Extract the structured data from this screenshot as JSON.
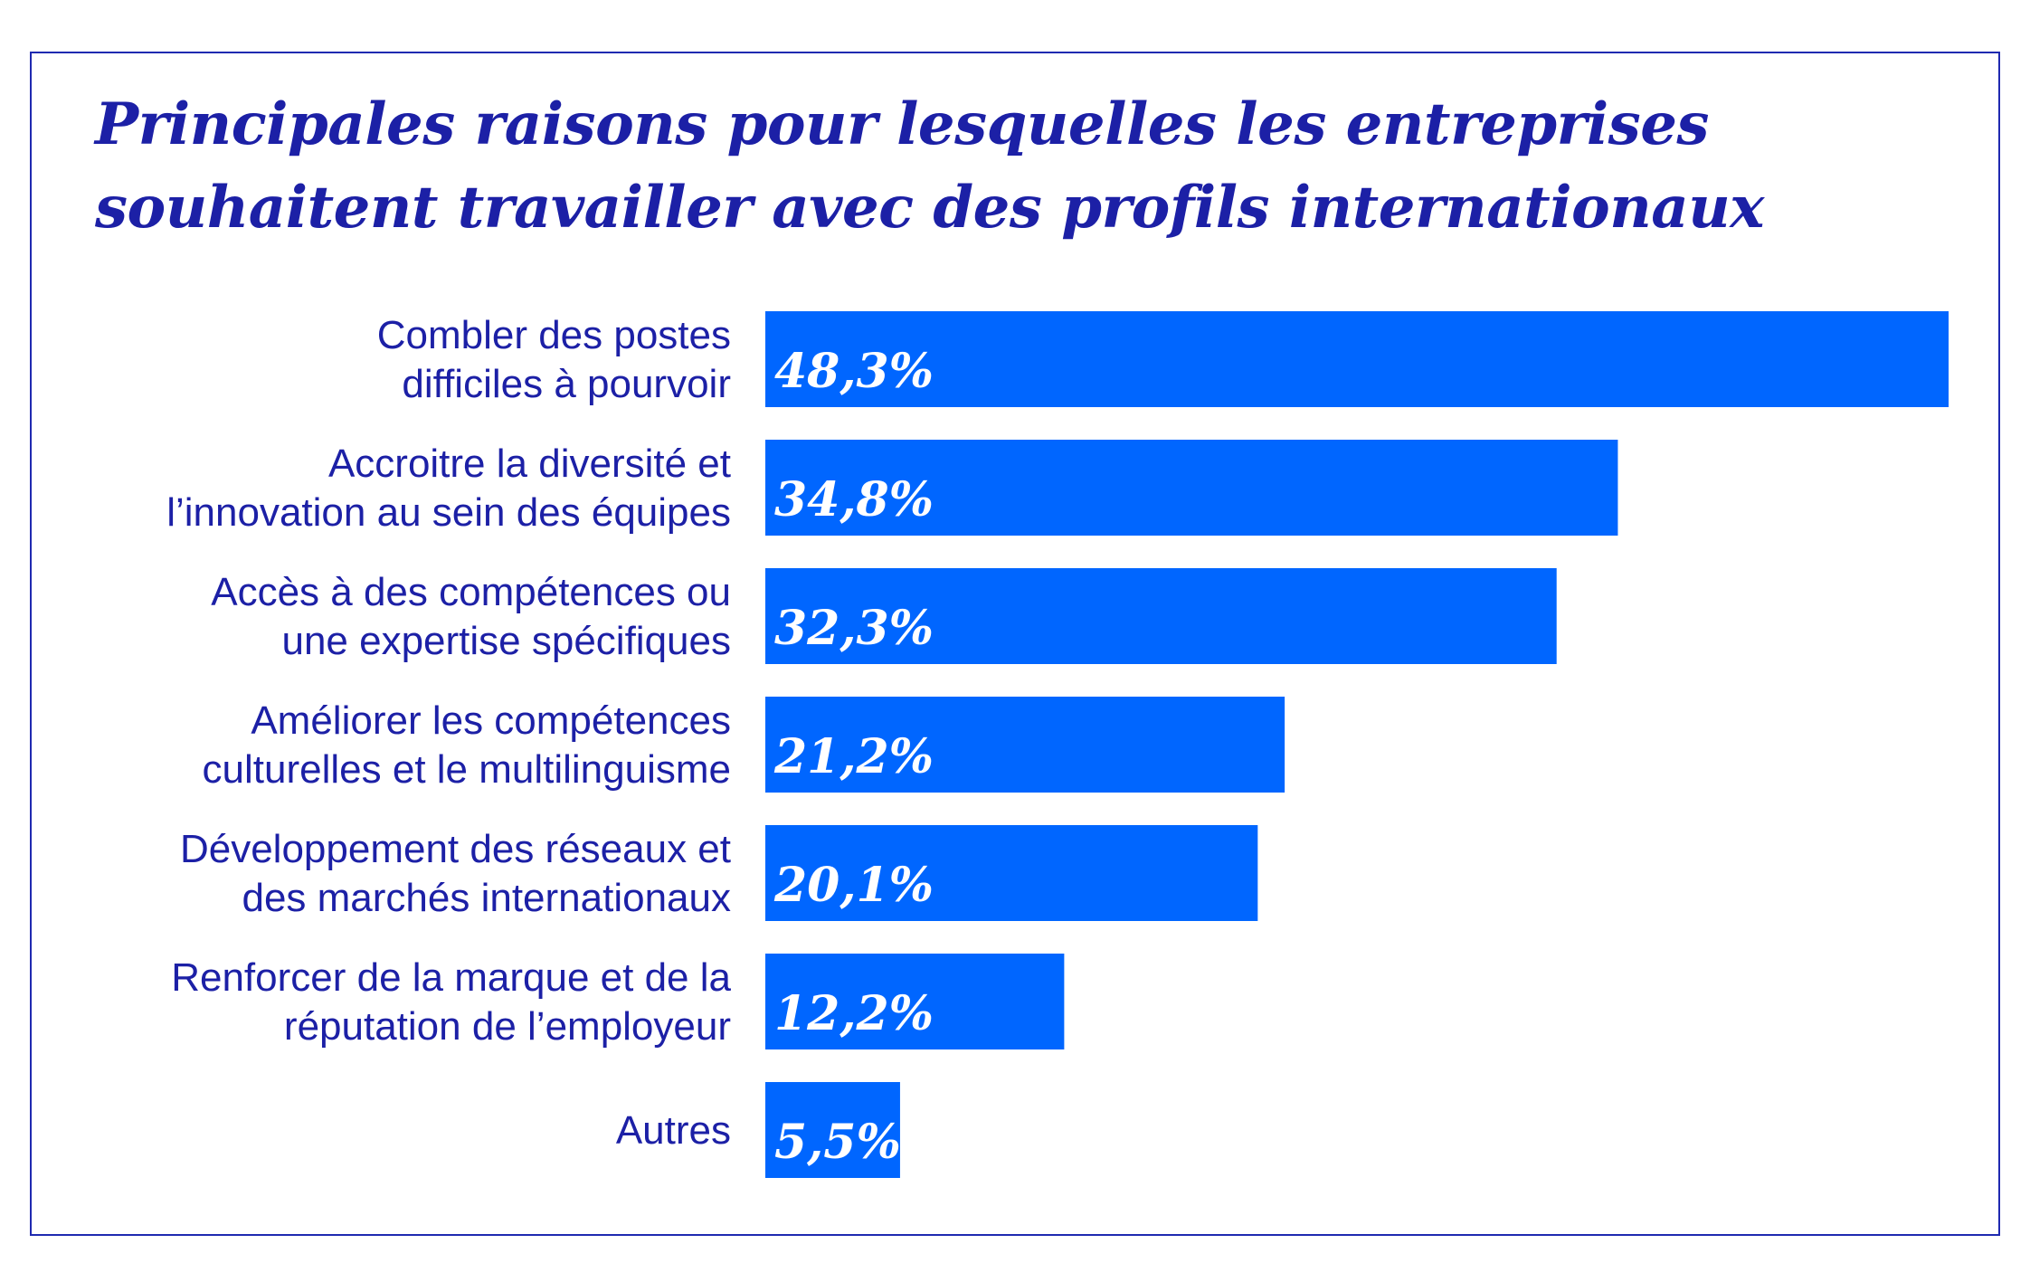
{
  "chart_data": {
    "type": "bar",
    "orientation": "horizontal",
    "title": "Principales raisons pour lesquelles les entreprises souhaitent travailler avec des profils internationaux",
    "title_lines": [
      "Principales raisons pour lesquelles les entreprises",
      "souhaitent travailler avec des profils internationaux"
    ],
    "categories": [
      [
        "Combler des postes",
        "difficiles à pourvoir"
      ],
      [
        "Accroitre la diversité et",
        "l’innovation au sein des équipes"
      ],
      [
        "Accès à des compétences ou",
        "une expertise spécifiques"
      ],
      [
        "Améliorer les compétences",
        "culturelles et le multilinguisme"
      ],
      [
        "Développement des réseaux et",
        "des marchés internationaux"
      ],
      [
        "Renforcer de la marque et de la",
        "réputation de l’employeur"
      ],
      [
        "Autres"
      ]
    ],
    "values": [
      48.3,
      34.8,
      32.3,
      21.2,
      20.1,
      12.2,
      5.5
    ],
    "value_labels": [
      "48,3%",
      "34,8%",
      "32,3%",
      "21,2%",
      "20,1%",
      "12,2%",
      "5,5%"
    ],
    "unit": "%",
    "xlim": [
      0,
      48.3
    ],
    "grid": false,
    "legend": "none",
    "colors": {
      "bar": "#0066ff",
      "text": "#1c20a6",
      "frame": "#1f2ab0",
      "value_text": "#ffffff"
    }
  }
}
